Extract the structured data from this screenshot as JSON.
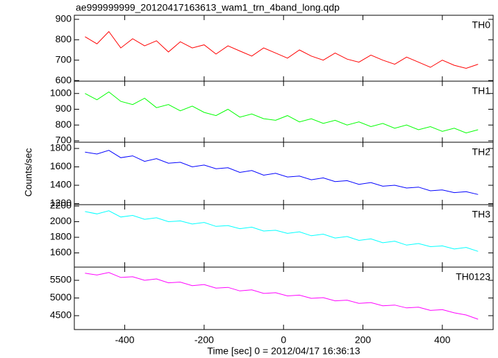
{
  "chart_data": [
    {
      "type": "line",
      "title": "ae999999999_20120417163613_wam1_trn_4band_long.qdp",
      "x": [
        -500,
        -470,
        -440,
        -410,
        -380,
        -350,
        -320,
        -290,
        -260,
        -230,
        -200,
        -170,
        -140,
        -110,
        -80,
        -50,
        -20,
        10,
        40,
        70,
        100,
        130,
        160,
        190,
        220,
        250,
        280,
        310,
        340,
        370,
        400,
        430,
        460,
        490
      ],
      "series": [
        {
          "name": "TH0",
          "color": "#ff0000",
          "values": [
            815,
            780,
            840,
            760,
            805,
            770,
            795,
            740,
            790,
            760,
            775,
            730,
            770,
            745,
            720,
            760,
            735,
            710,
            750,
            720,
            700,
            735,
            705,
            690,
            725,
            700,
            680,
            715,
            690,
            665,
            700,
            675,
            660,
            680
          ]
        }
      ],
      "xlim": [
        -527,
        528
      ],
      "xticks": [
        -400,
        -200,
        0,
        200,
        400
      ],
      "ylim": [
        597,
        920
      ],
      "yticks": [
        600,
        700,
        800,
        900
      ]
    },
    {
      "type": "line",
      "x": [
        -500,
        -470,
        -440,
        -410,
        -380,
        -350,
        -320,
        -290,
        -260,
        -230,
        -200,
        -170,
        -140,
        -110,
        -80,
        -50,
        -20,
        10,
        40,
        70,
        100,
        130,
        160,
        190,
        220,
        250,
        280,
        310,
        340,
        370,
        400,
        430,
        460,
        490
      ],
      "series": [
        {
          "name": "TH1",
          "color": "#00ff00",
          "values": [
            1000,
            960,
            1010,
            950,
            930,
            970,
            910,
            930,
            890,
            920,
            880,
            860,
            900,
            850,
            870,
            840,
            830,
            860,
            820,
            840,
            810,
            830,
            800,
            820,
            790,
            810,
            780,
            800,
            770,
            790,
            760,
            780,
            750,
            770
          ]
        }
      ],
      "xlim": [
        -527,
        528
      ],
      "xticks": [
        -400,
        -200,
        0,
        200,
        400
      ],
      "ylim": [
        691,
        1078
      ],
      "yticks": [
        700,
        800,
        900,
        1000
      ]
    },
    {
      "type": "line",
      "y_label": "Counts/sec",
      "x": [
        -500,
        -470,
        -440,
        -410,
        -380,
        -350,
        -320,
        -290,
        -260,
        -230,
        -200,
        -170,
        -140,
        -110,
        -80,
        -50,
        -20,
        10,
        40,
        70,
        100,
        130,
        160,
        190,
        220,
        250,
        280,
        310,
        340,
        370,
        400,
        430,
        460,
        490
      ],
      "series": [
        {
          "name": "TH2",
          "color": "#0000ff",
          "values": [
            1760,
            1740,
            1780,
            1700,
            1720,
            1660,
            1690,
            1640,
            1650,
            1600,
            1620,
            1580,
            1590,
            1540,
            1560,
            1510,
            1530,
            1490,
            1500,
            1460,
            1480,
            1440,
            1450,
            1410,
            1430,
            1390,
            1400,
            1370,
            1380,
            1340,
            1350,
            1320,
            1330,
            1300
          ]
        }
      ],
      "xlim": [
        -527,
        528
      ],
      "xticks": [
        -400,
        -200,
        0,
        200,
        400
      ],
      "ylim": [
        1189,
        1868
      ],
      "yticks": [
        1200,
        1400,
        1600,
        1800
      ]
    },
    {
      "type": "line",
      "x": [
        -500,
        -470,
        -440,
        -410,
        -380,
        -350,
        -320,
        -290,
        -260,
        -230,
        -200,
        -170,
        -140,
        -110,
        -80,
        -50,
        -20,
        10,
        40,
        70,
        100,
        130,
        160,
        190,
        220,
        250,
        280,
        310,
        340,
        370,
        400,
        430,
        460,
        490
      ],
      "series": [
        {
          "name": "TH3",
          "color": "#00ffff",
          "values": [
            2130,
            2100,
            2140,
            2060,
            2080,
            2030,
            2050,
            2000,
            2010,
            1970,
            1990,
            1940,
            1950,
            1910,
            1930,
            1880,
            1890,
            1850,
            1870,
            1820,
            1840,
            1790,
            1810,
            1760,
            1780,
            1730,
            1750,
            1700,
            1720,
            1680,
            1690,
            1650,
            1670,
            1620
          ]
        }
      ],
      "xlim": [
        -527,
        528
      ],
      "xticks": [
        -400,
        -200,
        0,
        200,
        400
      ],
      "ylim": [
        1418,
        2218
      ],
      "yticks": [
        1600,
        1800,
        2000,
        2200
      ]
    },
    {
      "type": "line",
      "x_label": "Time [sec] 0 = 2012/04/17 16:36:13",
      "x": [
        -500,
        -470,
        -440,
        -410,
        -380,
        -350,
        -320,
        -290,
        -260,
        -230,
        -200,
        -170,
        -140,
        -110,
        -80,
        -50,
        -20,
        10,
        40,
        70,
        100,
        130,
        160,
        190,
        220,
        250,
        280,
        310,
        340,
        370,
        400,
        430,
        460,
        490
      ],
      "series": [
        {
          "name": "TH0123",
          "color": "#ff00ff",
          "values": [
            5700,
            5650,
            5720,
            5580,
            5600,
            5500,
            5540,
            5430,
            5450,
            5350,
            5380,
            5280,
            5300,
            5200,
            5230,
            5130,
            5150,
            5060,
            5080,
            4990,
            5010,
            4920,
            4940,
            4850,
            4870,
            4780,
            4800,
            4720,
            4740,
            4650,
            4670,
            4580,
            4520,
            4400
          ]
        }
      ],
      "xlim": [
        -527,
        528
      ],
      "xticks": [
        -400,
        -200,
        0,
        200,
        400
      ],
      "ylim": [
        4108,
        5873
      ],
      "yticks": [
        4500,
        5000,
        5500
      ]
    }
  ]
}
